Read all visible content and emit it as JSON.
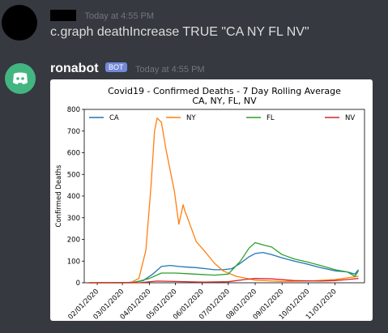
{
  "messages": [
    {
      "author_redacted": true,
      "timestamp": "Today at 4:55 PM",
      "text": "c.graph deathIncrease TRUE \"CA NY FL NV\""
    },
    {
      "author": "ronabot",
      "badge": "BOT",
      "timestamp": "Today at 4:55 PM"
    }
  ],
  "chart_data": {
    "type": "line",
    "title": "Covid19 - Confirmed Deaths - 7 Day Rolling Average",
    "subtitle": "CA, NY, FL, NV",
    "xlabel": "",
    "ylabel": "Confirmed Deaths",
    "ylim": [
      0,
      800
    ],
    "yticks": [
      0,
      100,
      200,
      300,
      400,
      500,
      600,
      700,
      800
    ],
    "xticks": [
      "02/01/2020",
      "03/01/2020",
      "04/01/2020",
      "05/01/2020",
      "06/01/2020",
      "07/01/2020",
      "08/01/2020",
      "09/01/2020",
      "10/01/2020",
      "11/01/2020"
    ],
    "grid": false,
    "legend_placement": "top",
    "series": [
      {
        "name": "CA",
        "color": "#1f77b4",
        "x": [
          "2020-01-22",
          "2020-03-01",
          "2020-03-15",
          "2020-03-25",
          "2020-04-05",
          "2020-04-15",
          "2020-04-25",
          "2020-05-05",
          "2020-05-15",
          "2020-05-25",
          "2020-06-05",
          "2020-06-15",
          "2020-06-25",
          "2020-07-05",
          "2020-07-15",
          "2020-07-25",
          "2020-08-01",
          "2020-08-10",
          "2020-08-20",
          "2020-09-01",
          "2020-09-15",
          "2020-10-01",
          "2020-10-15",
          "2020-11-01",
          "2020-11-15",
          "2020-11-24",
          "2020-11-28"
        ],
        "y": [
          0,
          0,
          3,
          10,
          40,
          75,
          80,
          75,
          72,
          70,
          65,
          60,
          60,
          65,
          90,
          120,
          135,
          140,
          130,
          115,
          100,
          85,
          70,
          55,
          50,
          40,
          60
        ]
      },
      {
        "name": "NY",
        "color": "#ff7f0e",
        "x": [
          "2020-01-22",
          "2020-03-10",
          "2020-03-20",
          "2020-03-28",
          "2020-04-03",
          "2020-04-07",
          "2020-04-10",
          "2020-04-15",
          "2020-04-20",
          "2020-04-25",
          "2020-04-30",
          "2020-05-03",
          "2020-05-05",
          "2020-05-10",
          "2020-05-12",
          "2020-05-15",
          "2020-05-25",
          "2020-06-05",
          "2020-06-15",
          "2020-06-25",
          "2020-07-10",
          "2020-08-01",
          "2020-09-01",
          "2020-10-01",
          "2020-11-01",
          "2020-11-28"
        ],
        "y": [
          0,
          0,
          20,
          150,
          450,
          700,
          760,
          740,
          620,
          520,
          420,
          330,
          270,
          360,
          330,
          300,
          190,
          140,
          90,
          55,
          30,
          12,
          6,
          8,
          15,
          30
        ]
      },
      {
        "name": "FL",
        "color": "#2ca02c",
        "x": [
          "2020-01-22",
          "2020-03-15",
          "2020-04-01",
          "2020-04-15",
          "2020-05-01",
          "2020-05-15",
          "2020-06-01",
          "2020-06-15",
          "2020-07-01",
          "2020-07-15",
          "2020-07-25",
          "2020-08-01",
          "2020-08-10",
          "2020-08-20",
          "2020-09-01",
          "2020-09-15",
          "2020-10-01",
          "2020-10-15",
          "2020-11-01",
          "2020-11-15",
          "2020-11-24",
          "2020-11-28"
        ],
        "y": [
          0,
          2,
          20,
          45,
          45,
          42,
          38,
          35,
          40,
          100,
          160,
          185,
          175,
          165,
          130,
          110,
          95,
          80,
          60,
          50,
          30,
          55
        ]
      },
      {
        "name": "NV",
        "color": "#d62728",
        "x": [
          "2020-01-22",
          "2020-03-20",
          "2020-04-10",
          "2020-05-01",
          "2020-06-01",
          "2020-07-01",
          "2020-07-20",
          "2020-08-01",
          "2020-08-20",
          "2020-09-15",
          "2020-10-15",
          "2020-11-01",
          "2020-11-15",
          "2020-11-28"
        ],
        "y": [
          0,
          0,
          8,
          6,
          3,
          5,
          15,
          20,
          18,
          10,
          8,
          10,
          15,
          20
        ]
      }
    ]
  }
}
